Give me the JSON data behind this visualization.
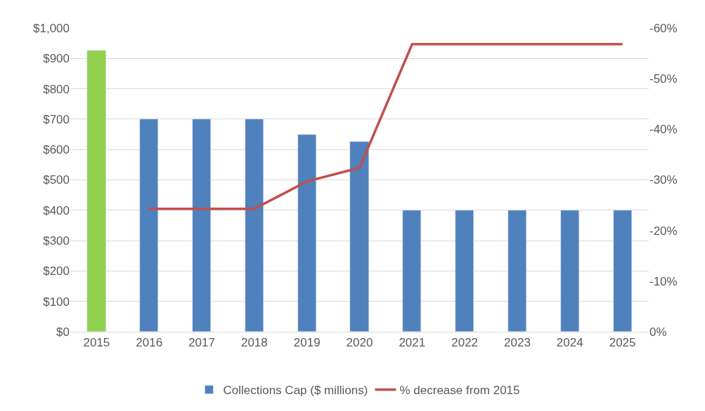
{
  "chart_data": {
    "type": "bar",
    "categories": [
      "2015",
      "2016",
      "2017",
      "2018",
      "2019",
      "2020",
      "2021",
      "2022",
      "2023",
      "2024",
      "2025"
    ],
    "series": [
      {
        "name": "Collections Cap ($ millions)",
        "color": "#4f81bd",
        "colors": [
          "#92d050",
          "#4f81bd",
          "#4f81bd",
          "#4f81bd",
          "#4f81bd",
          "#4f81bd",
          "#4f81bd",
          "#4f81bd",
          "#4f81bd",
          "#4f81bd",
          "#4f81bd"
        ],
        "values": [
          925,
          700,
          700,
          700,
          650,
          625,
          400,
          400,
          400,
          400,
          400
        ]
      },
      {
        "name": "% decrease from 2015",
        "type": "line",
        "axis": "y2",
        "color": "#c0504d",
        "values": [
          null,
          -24.3,
          -24.3,
          -24.3,
          -29.7,
          -32.4,
          -56.8,
          -56.8,
          -56.8,
          -56.8,
          -56.8
        ]
      }
    ],
    "ylim": [
      0,
      1000
    ],
    "yticks": [
      {
        "value": 0,
        "label": "$0"
      },
      {
        "value": 100,
        "label": "$100"
      },
      {
        "value": 200,
        "label": "$200"
      },
      {
        "value": 300,
        "label": "$300"
      },
      {
        "value": 400,
        "label": "$400"
      },
      {
        "value": 500,
        "label": "$500"
      },
      {
        "value": 600,
        "label": "$600"
      },
      {
        "value": 700,
        "label": "$700"
      },
      {
        "value": 800,
        "label": "$800"
      },
      {
        "value": 900,
        "label": "$900"
      },
      {
        "value": 1000,
        "label": "$1,000"
      }
    ],
    "y2lim": [
      0,
      -60
    ],
    "y2ticks": [
      {
        "value": 0,
        "label": "0%"
      },
      {
        "value": -10,
        "label": "-10%"
      },
      {
        "value": -20,
        "label": "-20%"
      },
      {
        "value": -30,
        "label": "-30%"
      },
      {
        "value": -40,
        "label": "-40%"
      },
      {
        "value": -50,
        "label": "-50%"
      },
      {
        "value": -60,
        "label": "-60%"
      }
    ],
    "grid": "y",
    "legend": "bottom",
    "marker": "none",
    "line_style": "solid"
  }
}
